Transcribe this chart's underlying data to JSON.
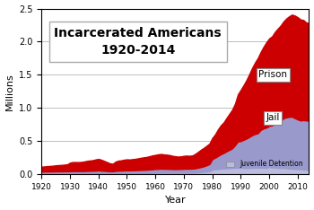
{
  "title": "Incarcerated Americans\n1920-2014",
  "xlabel": "Year",
  "ylabel": "Millions",
  "xlim": [
    1920,
    2014
  ],
  "ylim": [
    0,
    2.5
  ],
  "yticks": [
    0.0,
    0.5,
    1.0,
    1.5,
    2.0,
    2.5
  ],
  "xticks": [
    1920,
    1930,
    1940,
    1950,
    1960,
    1970,
    1980,
    1990,
    2000,
    2010
  ],
  "prison_color": "#cc0000",
  "jail_color": "#9999cc",
  "juvenile_color": "#bbbbdd",
  "background_color": "#ffffff",
  "years": [
    1920,
    1921,
    1922,
    1923,
    1924,
    1925,
    1926,
    1927,
    1928,
    1929,
    1930,
    1931,
    1932,
    1933,
    1934,
    1935,
    1936,
    1937,
    1938,
    1939,
    1940,
    1941,
    1942,
    1943,
    1944,
    1945,
    1946,
    1947,
    1948,
    1949,
    1950,
    1951,
    1952,
    1953,
    1954,
    1955,
    1956,
    1957,
    1958,
    1959,
    1960,
    1961,
    1962,
    1963,
    1964,
    1965,
    1966,
    1967,
    1968,
    1969,
    1970,
    1971,
    1972,
    1973,
    1974,
    1975,
    1976,
    1977,
    1978,
    1979,
    1980,
    1981,
    1982,
    1983,
    1984,
    1985,
    1986,
    1987,
    1988,
    1989,
    1990,
    1991,
    1992,
    1993,
    1994,
    1995,
    1996,
    1997,
    1998,
    1999,
    2000,
    2001,
    2002,
    2003,
    2004,
    2005,
    2006,
    2007,
    2008,
    2009,
    2010,
    2011,
    2012,
    2013,
    2014
  ],
  "prison": [
    0.075,
    0.078,
    0.082,
    0.085,
    0.088,
    0.092,
    0.095,
    0.098,
    0.101,
    0.105,
    0.129,
    0.137,
    0.137,
    0.136,
    0.138,
    0.145,
    0.152,
    0.157,
    0.16,
    0.17,
    0.174,
    0.165,
    0.15,
    0.135,
    0.12,
    0.114,
    0.14,
    0.151,
    0.155,
    0.163,
    0.167,
    0.165,
    0.168,
    0.172,
    0.178,
    0.185,
    0.19,
    0.194,
    0.202,
    0.21,
    0.213,
    0.22,
    0.223,
    0.217,
    0.214,
    0.21,
    0.2,
    0.195,
    0.188,
    0.19,
    0.196,
    0.198,
    0.196,
    0.198,
    0.218,
    0.24,
    0.262,
    0.278,
    0.295,
    0.31,
    0.319,
    0.353,
    0.402,
    0.437,
    0.462,
    0.503,
    0.545,
    0.585,
    0.628,
    0.712,
    0.774,
    0.825,
    0.883,
    0.948,
    1.016,
    1.078,
    1.135,
    1.177,
    1.232,
    1.287,
    1.321,
    1.345,
    1.381,
    1.409,
    1.433,
    1.461,
    1.492,
    1.517,
    1.541,
    1.547,
    1.543,
    1.525,
    1.511,
    1.48,
    1.47
  ],
  "jail": [
    0.03,
    0.03,
    0.031,
    0.031,
    0.031,
    0.032,
    0.032,
    0.032,
    0.033,
    0.033,
    0.034,
    0.035,
    0.035,
    0.035,
    0.036,
    0.036,
    0.037,
    0.038,
    0.039,
    0.04,
    0.042,
    0.04,
    0.038,
    0.036,
    0.034,
    0.033,
    0.038,
    0.04,
    0.041,
    0.042,
    0.043,
    0.043,
    0.044,
    0.045,
    0.046,
    0.047,
    0.048,
    0.05,
    0.052,
    0.055,
    0.057,
    0.058,
    0.059,
    0.058,
    0.057,
    0.056,
    0.055,
    0.054,
    0.055,
    0.056,
    0.057,
    0.058,
    0.058,
    0.059,
    0.062,
    0.068,
    0.075,
    0.083,
    0.093,
    0.105,
    0.158,
    0.175,
    0.195,
    0.218,
    0.234,
    0.256,
    0.274,
    0.294,
    0.341,
    0.395,
    0.403,
    0.424,
    0.444,
    0.467,
    0.49,
    0.507,
    0.518,
    0.567,
    0.592,
    0.606,
    0.621,
    0.631,
    0.665,
    0.691,
    0.714,
    0.747,
    0.766,
    0.78,
    0.785,
    0.767,
    0.748,
    0.736,
    0.745,
    0.742,
    0.745
  ],
  "juvenile": [
    0.01,
    0.01,
    0.01,
    0.01,
    0.01,
    0.011,
    0.011,
    0.011,
    0.011,
    0.011,
    0.012,
    0.012,
    0.012,
    0.012,
    0.012,
    0.012,
    0.013,
    0.013,
    0.013,
    0.014,
    0.015,
    0.014,
    0.013,
    0.012,
    0.011,
    0.011,
    0.013,
    0.014,
    0.014,
    0.015,
    0.015,
    0.015,
    0.016,
    0.016,
    0.017,
    0.017,
    0.018,
    0.018,
    0.019,
    0.02,
    0.022,
    0.023,
    0.024,
    0.024,
    0.024,
    0.024,
    0.023,
    0.023,
    0.023,
    0.024,
    0.025,
    0.025,
    0.025,
    0.026,
    0.027,
    0.03,
    0.033,
    0.037,
    0.042,
    0.048,
    0.07,
    0.075,
    0.08,
    0.084,
    0.087,
    0.09,
    0.093,
    0.096,
    0.098,
    0.099,
    0.097,
    0.096,
    0.094,
    0.095,
    0.098,
    0.1,
    0.101,
    0.1,
    0.099,
    0.098,
    0.108,
    0.105,
    0.101,
    0.097,
    0.096,
    0.096,
    0.092,
    0.086,
    0.083,
    0.08,
    0.079,
    0.075,
    0.072,
    0.068,
    0.065
  ]
}
